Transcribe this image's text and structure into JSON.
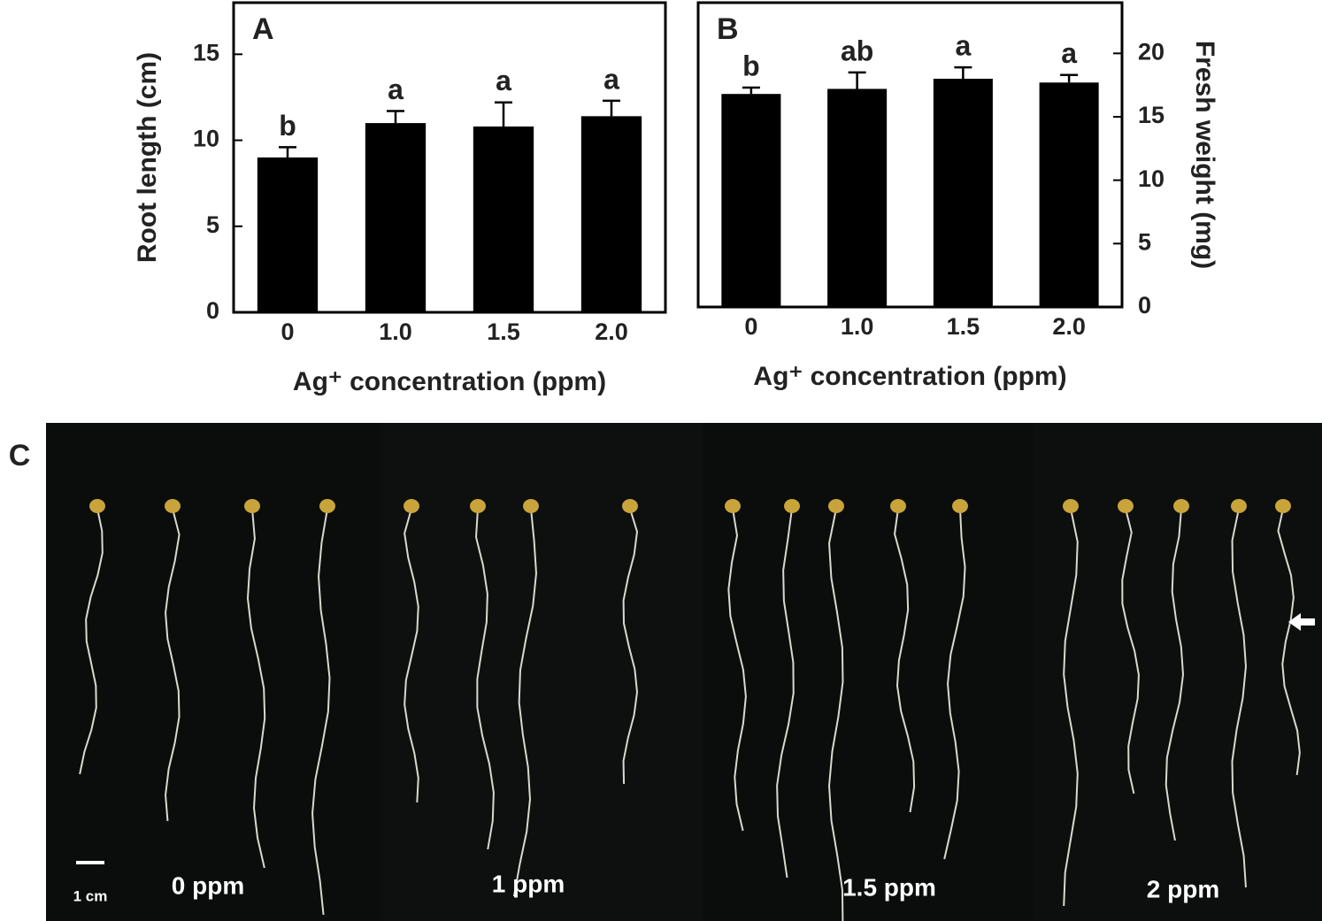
{
  "chart_data": [
    {
      "type": "bar",
      "panel_label": "A",
      "ylabel": "Root length (cm)",
      "xlabel": "Ag⁺ concentration (ppm)",
      "categories": [
        "0",
        "1.0",
        "1.5",
        "2.0"
      ],
      "values": [
        9.0,
        11.0,
        10.8,
        11.4
      ],
      "errors": [
        0.6,
        0.7,
        1.4,
        0.9
      ],
      "significance_letters": [
        "b",
        "a",
        "a",
        "a"
      ],
      "color": "#000000",
      "ylim": [
        0,
        18
      ],
      "yticks": [
        0,
        5,
        10,
        15
      ],
      "y_axis_side": "left"
    },
    {
      "type": "bar",
      "panel_label": "B",
      "ylabel": "Fresh weight (mg)",
      "xlabel": "Ag⁺ concentration (ppm)",
      "categories": [
        "0",
        "1.0",
        "1.5",
        "2.0"
      ],
      "values": [
        16.8,
        17.2,
        18.0,
        17.7
      ],
      "errors": [
        0.5,
        1.3,
        0.9,
        0.6
      ],
      "significance_letters": [
        "b",
        "ab",
        "a",
        "a"
      ],
      "color": "#000000",
      "ylim": [
        0,
        24
      ],
      "yticks": [
        0,
        5,
        10,
        15,
        20
      ],
      "y_axis_side": "right"
    }
  ],
  "photo_panel": {
    "panel_label": "C",
    "scale_bar": "1 cm",
    "labels": [
      "0 ppm",
      "1 ppm",
      "1.5 ppm",
      "2 ppm"
    ]
  }
}
